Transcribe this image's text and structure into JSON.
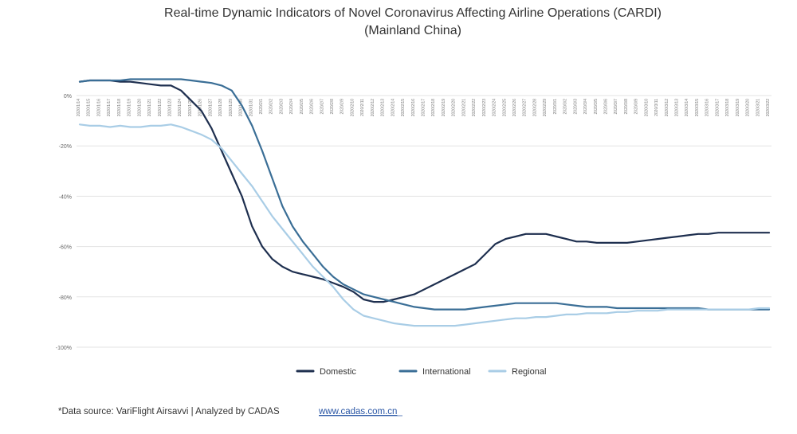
{
  "chart_data": {
    "type": "line",
    "title": "Real-time Dynamic Indicators of Novel Coronavirus Affecting Airline Operations (CARDI)",
    "subtitle": "(Mainland China)",
    "xlabel": "",
    "ylabel": "",
    "ylim": [
      -100,
      0
    ],
    "y_ticks": [
      0,
      -20,
      -40,
      -60,
      -80,
      -100
    ],
    "y_tick_labels": [
      "0%",
      "-20%",
      "-40%",
      "-60%",
      "-80%",
      "-100%"
    ],
    "x_ticks": [
      "2020/1/14",
      "2020/1/15",
      "2020/1/16",
      "2020/1/17",
      "2020/1/18",
      "2020/1/19",
      "2020/1/20",
      "2020/1/21",
      "2020/1/22",
      "2020/1/23",
      "2020/1/24",
      "2020/1/25",
      "2020/1/26",
      "2020/1/27",
      "2020/1/28",
      "2020/1/29",
      "2020/1/30",
      "2020/1/31",
      "2020/2/1",
      "2020/2/2",
      "2020/2/3",
      "2020/2/4",
      "2020/2/5",
      "2020/2/6",
      "2020/2/7",
      "2020/2/8",
      "2020/2/9",
      "2020/2/10",
      "2020/2/11",
      "2020/2/12",
      "2020/2/13",
      "2020/2/14",
      "2020/2/15",
      "2020/2/16",
      "2020/2/17",
      "2020/2/18",
      "2020/2/19",
      "2020/2/20",
      "2020/2/21",
      "2020/2/22",
      "2020/2/23",
      "2020/2/24",
      "2020/2/25",
      "2020/2/26",
      "2020/2/27",
      "2020/2/28",
      "2020/2/29",
      "2020/3/1",
      "2020/3/2",
      "2020/3/3",
      "2020/3/4",
      "2020/3/5",
      "2020/3/6",
      "2020/3/7",
      "2020/3/8",
      "2020/3/9",
      "2020/3/10",
      "2020/3/11",
      "2020/3/12",
      "2020/3/13",
      "2020/3/14",
      "2020/3/15",
      "2020/3/16",
      "2020/3/17",
      "2020/3/18",
      "2020/3/19",
      "2020/3/20",
      "2020/3/21",
      "2020/3/22"
    ],
    "grid": true,
    "legend_position": "bottom",
    "series": [
      {
        "name": "Domestic",
        "color": "#1e2f4f",
        "values": [
          5.5,
          6,
          6,
          6,
          5.5,
          5.5,
          5,
          4.5,
          4,
          4,
          2,
          -2,
          -6,
          -13,
          -22,
          -31,
          -40,
          -52,
          -60,
          -65,
          -68,
          -70,
          -71,
          -72,
          -73,
          -74.5,
          -76,
          -78,
          -81,
          -82,
          -82,
          -81,
          -80,
          -79,
          -77,
          -75,
          -73,
          -71,
          -69,
          -67,
          -63,
          -59,
          -57,
          -56,
          -55,
          -55,
          -55,
          -56,
          -57,
          -58,
          -58,
          -58.5,
          -58.5,
          -58.5,
          -58.5,
          -58,
          -57.5,
          -57,
          -56.5,
          -56,
          -55.5,
          -55,
          -55,
          -54.5,
          -54.5,
          -54.5,
          -54.5,
          -54.5,
          -54.5
        ]
      },
      {
        "name": "International",
        "color": "#3a6e96",
        "values": [
          5.5,
          6,
          6,
          6,
          6,
          6.5,
          6.5,
          6.5,
          6.5,
          6.5,
          6.5,
          6,
          5.5,
          5,
          4,
          2,
          -4,
          -12,
          -22,
          -33,
          -44,
          -52,
          -58,
          -63,
          -68,
          -72,
          -75,
          -77,
          -79,
          -80,
          -81,
          -82,
          -83,
          -84,
          -84.5,
          -85,
          -85,
          -85,
          -85,
          -84.5,
          -84,
          -83.5,
          -83,
          -82.5,
          -82.5,
          -82.5,
          -82.5,
          -82.5,
          -83,
          -83.5,
          -84,
          -84,
          -84,
          -84.5,
          -84.5,
          -84.5,
          -84.5,
          -84.5,
          -84.5,
          -84.5,
          -84.5,
          -84.5,
          -85,
          -85,
          -85,
          -85,
          -85,
          -85,
          -85
        ]
      },
      {
        "name": "Regional",
        "color": "#a9cde6",
        "values": [
          -11.5,
          -12,
          -12,
          -12.5,
          -12,
          -12.5,
          -12.5,
          -12,
          -12,
          -11.5,
          -12.5,
          -14,
          -15.5,
          -17.5,
          -21,
          -26,
          -31,
          -36,
          -42,
          -48,
          -53,
          -58,
          -63,
          -68,
          -72,
          -76,
          -81,
          -85,
          -87.5,
          -88.5,
          -89.5,
          -90.5,
          -91,
          -91.5,
          -91.5,
          -91.5,
          -91.5,
          -91.5,
          -91,
          -90.5,
          -90,
          -89.5,
          -89,
          -88.5,
          -88.5,
          -88,
          -88,
          -87.5,
          -87,
          -87,
          -86.5,
          -86.5,
          -86.5,
          -86,
          -86,
          -85.5,
          -85.5,
          -85.5,
          -85,
          -85,
          -85,
          -85,
          -85,
          -85,
          -85,
          -85,
          -85,
          -84.5,
          -84.5
        ]
      }
    ]
  },
  "footer": {
    "source_text": "*Data source: VariFlight Airsavvi | Analyzed by CADAS",
    "link_text": "www.cadas.com.cn"
  }
}
